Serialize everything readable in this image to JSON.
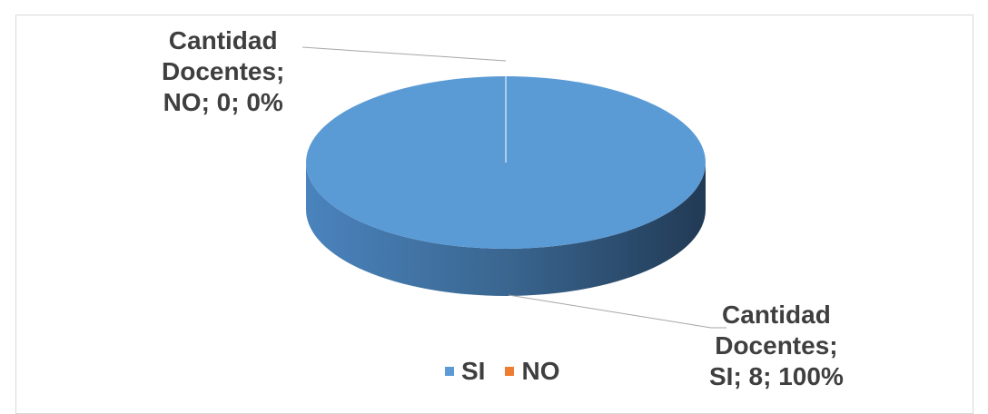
{
  "chart_data": {
    "type": "pie",
    "categories": [
      "SI",
      "NO"
    ],
    "values": [
      8,
      0
    ],
    "percentages": [
      "100%",
      "0%"
    ],
    "series_name": "Cantidad Docentes",
    "data_labels": [
      "Cantidad\nDocentes;\nSI; 8; 100%",
      "Cantidad\nDocentes;\nNO; 0; 0%"
    ],
    "legend": [
      "SI",
      "NO"
    ],
    "legend_position": "bottom",
    "colors": [
      "#5b9bd5",
      "#ed7d31"
    ],
    "style": "3d"
  }
}
